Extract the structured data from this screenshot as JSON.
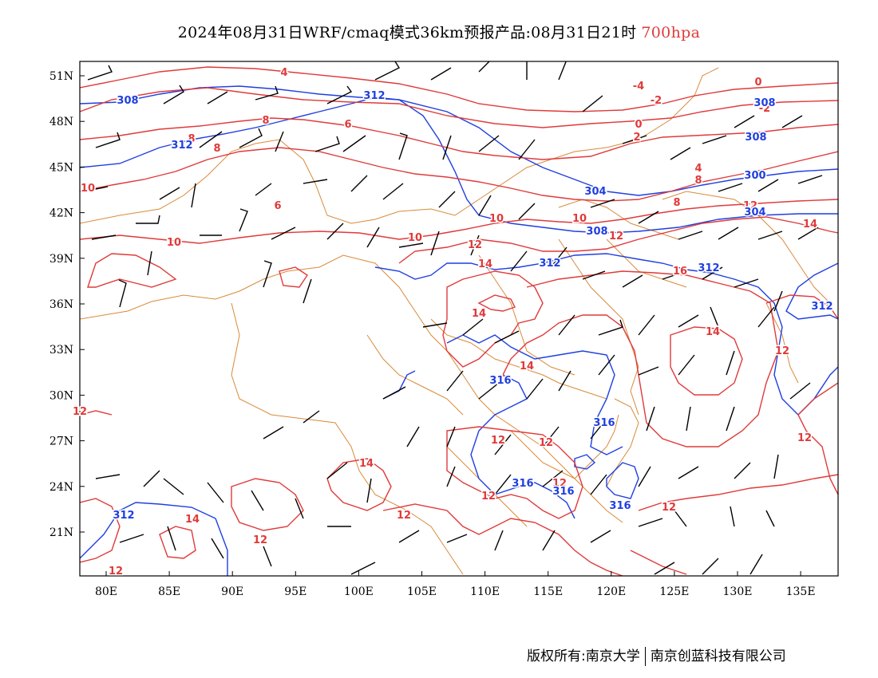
{
  "title": {
    "main": "2024年08月31日WRF/cmaq模式36km预报产品:08月31日21时",
    "level": "700hpa"
  },
  "colors": {
    "temperature": "#e03a3a",
    "height": "#1f3fe0",
    "border": "#d88a3a",
    "wind": "#000000"
  },
  "axes": {
    "lat_labels": [
      "51N",
      "48N",
      "45N",
      "42N",
      "39N",
      "36N",
      "33N",
      "30N",
      "27N",
      "24N",
      "21N"
    ],
    "lon_labels": [
      "80E",
      "85E",
      "90E",
      "95E",
      "100E",
      "105E",
      "110E",
      "115E",
      "120E",
      "125E",
      "130E",
      "135E"
    ]
  },
  "contour_labels": {
    "temperature": [
      "4",
      "-4",
      "-2",
      "0",
      "2",
      "0",
      "-2",
      "4",
      "8",
      "8",
      "8",
      "6",
      "6",
      "8",
      "8",
      "10",
      "10",
      "10",
      "10",
      "10",
      "12",
      "12",
      "12",
      "14",
      "14",
      "14",
      "14",
      "16",
      "14",
      "12",
      "12",
      "12",
      "12",
      "12",
      "12",
      "12",
      "12",
      "14",
      "14",
      "12",
      "12",
      "12"
    ],
    "height": [
      "308",
      "312",
      "312",
      "304",
      "308",
      "308",
      "300",
      "304",
      "308",
      "312",
      "312",
      "312",
      "316",
      "316",
      "316",
      "316",
      "312",
      "316"
    ]
  },
  "footer": {
    "left": "版权所有:南京大学",
    "right": "南京创蓝科技有限公司"
  }
}
